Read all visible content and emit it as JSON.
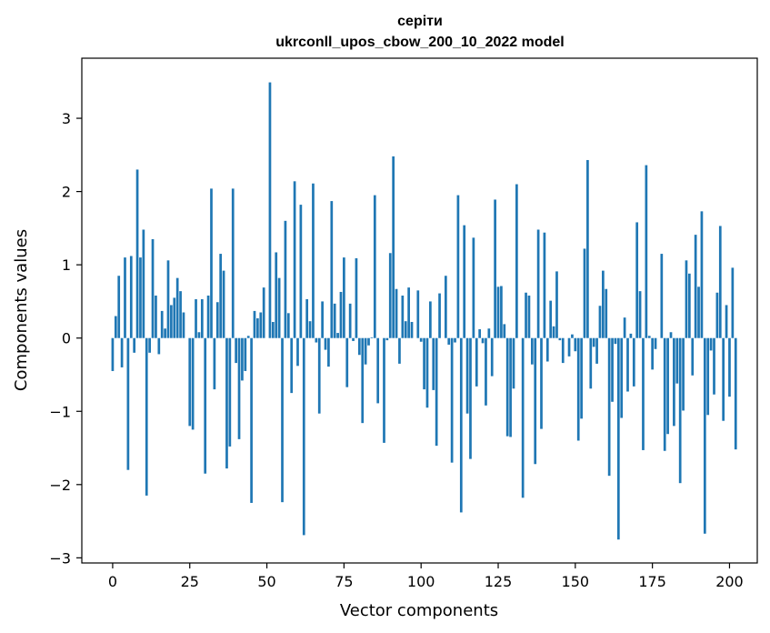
{
  "chart_data": {
    "type": "bar",
    "title": "серіти",
    "subtitle": "ukrconll_upos_cbow_200_10_2022 model",
    "xlabel": "Vector components",
    "ylabel": "Components values",
    "xlim": [
      -10,
      209
    ],
    "ylim": [
      -3.07,
      3.82
    ],
    "xticks": [
      0,
      25,
      50,
      75,
      100,
      125,
      150,
      175,
      200
    ],
    "yticks": [
      -3,
      -2,
      -1,
      0,
      1,
      2,
      3
    ],
    "ytick_labels": [
      "−3",
      "−2",
      "−1",
      "0",
      "1",
      "2",
      "3"
    ],
    "grid": false,
    "bar_color": "#1f77b4",
    "values": [
      -0.45,
      0.3,
      0.85,
      -0.4,
      1.1,
      -1.8,
      1.12,
      -0.2,
      2.3,
      1.1,
      1.48,
      -2.15,
      -0.2,
      1.35,
      0.58,
      -0.22,
      0.37,
      0.13,
      1.06,
      0.45,
      0.55,
      0.82,
      0.64,
      0.35,
      0.0,
      -1.2,
      -1.25,
      0.53,
      0.08,
      0.53,
      -1.85,
      0.58,
      2.04,
      -0.7,
      0.49,
      1.15,
      0.92,
      -1.78,
      -1.48,
      2.04,
      -0.34,
      -1.38,
      -0.58,
      -0.45,
      0.03,
      -2.25,
      0.37,
      0.27,
      0.35,
      0.69,
      0.0,
      3.49,
      0.22,
      1.17,
      0.82,
      -2.24,
      1.6,
      0.34,
      -0.75,
      2.14,
      -0.38,
      1.82,
      -2.69,
      0.53,
      0.23,
      2.11,
      -0.06,
      -1.03,
      0.5,
      -0.16,
      -0.39,
      1.87,
      0.47,
      0.07,
      0.63,
      1.1,
      -0.67,
      0.47,
      -0.04,
      1.09,
      -0.23,
      -1.16,
      -0.36,
      -0.1,
      0.01,
      1.95,
      -0.89,
      0.0,
      -1.43,
      -0.03,
      1.16,
      2.48,
      0.67,
      -0.35,
      0.58,
      0.23,
      0.69,
      0.22,
      0.0,
      0.65,
      -0.05,
      -0.7,
      -0.95,
      0.5,
      -0.71,
      -1.47,
      0.61,
      0.0,
      0.85,
      -0.09,
      -1.7,
      -0.06,
      1.95,
      -2.38,
      1.54,
      -1.03,
      -1.65,
      1.37,
      -0.66,
      0.12,
      -0.07,
      -0.92,
      0.13,
      -0.52,
      1.89,
      0.7,
      0.71,
      0.19,
      -1.34,
      -1.35,
      -0.69,
      2.1,
      0.0,
      -2.18,
      0.62,
      0.58,
      -0.36,
      -1.72,
      1.48,
      -1.24,
      1.44,
      -0.32,
      0.51,
      0.16,
      0.91,
      -0.03,
      -0.34,
      0.0,
      -0.25,
      0.05,
      -0.18,
      -1.4,
      -1.1,
      1.22,
      2.43,
      -0.69,
      -0.12,
      -0.35,
      0.44,
      0.92,
      0.67,
      -1.88,
      -0.87,
      -0.08,
      -2.75,
      -1.09,
      0.28,
      -0.73,
      0.06,
      -0.66,
      1.58,
      0.64,
      -1.53,
      2.36,
      0.03,
      -0.43,
      -0.15,
      0.0,
      1.15,
      -1.54,
      -1.31,
      0.08,
      -1.2,
      -0.62,
      -1.98,
      -0.99,
      1.06,
      0.88,
      -0.51,
      1.41,
      0.7,
      1.73,
      -2.67,
      -1.05,
      -0.17,
      -0.77,
      0.62,
      1.53,
      -1.13,
      0.45,
      -0.8,
      0.96,
      -1.52
    ]
  }
}
